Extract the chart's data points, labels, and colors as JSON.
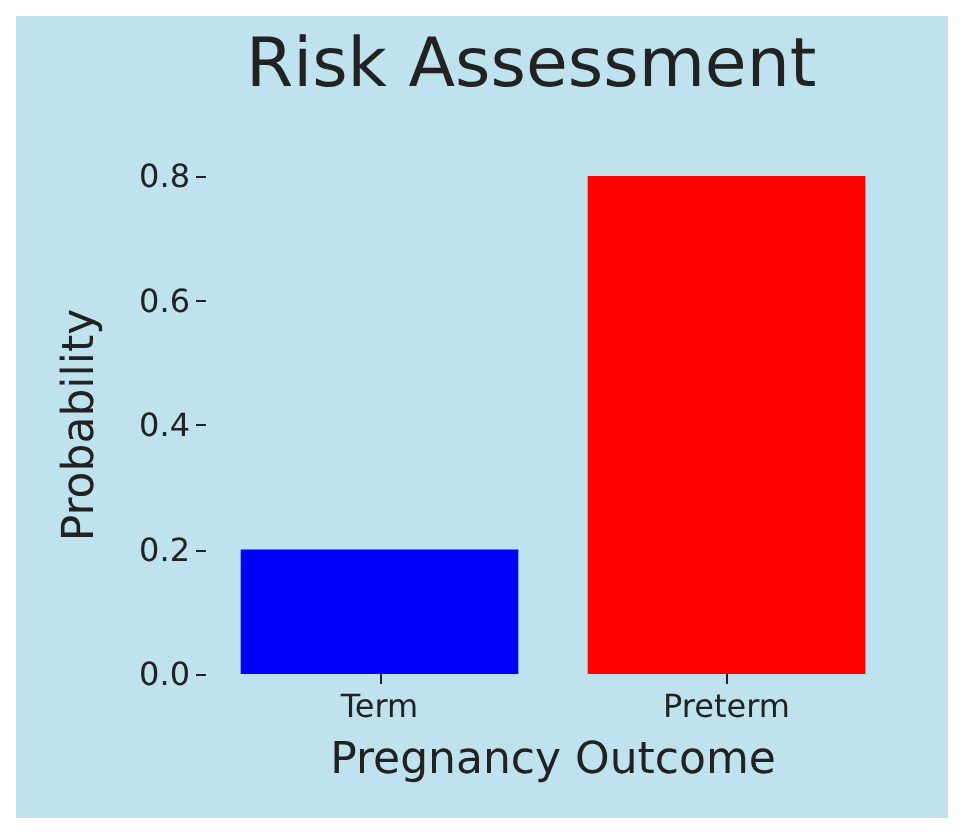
{
  "chart_data": {
    "type": "bar",
    "title": "Risk Assessment",
    "xlabel": "Pregnancy Outcome",
    "ylabel": "Probability",
    "categories": [
      "Term",
      "Preterm"
    ],
    "values": [
      0.2,
      0.8
    ],
    "colors": [
      "#0000ff",
      "#ff0000"
    ],
    "ylim": [
      0,
      0.8
    ],
    "yticks": [
      {
        "value": 0,
        "label": "0.0"
      },
      0.2,
      0.4,
      0.6,
      0.8
    ],
    "grid": false
  }
}
